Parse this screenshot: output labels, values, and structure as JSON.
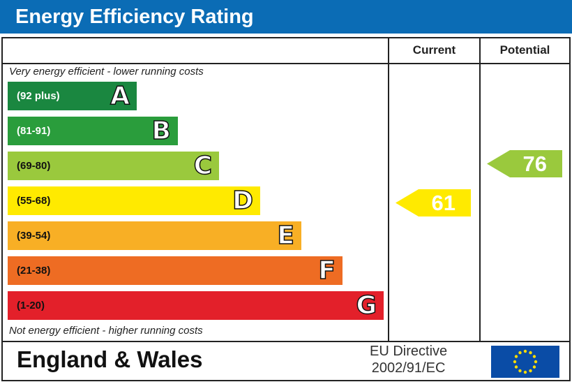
{
  "header": {
    "title": "Energy Efficiency Rating"
  },
  "columns": {
    "current": "Current",
    "potential": "Potential"
  },
  "notes": {
    "top": "Very energy efficient - lower running costs",
    "bottom": "Not energy efficient - higher running costs"
  },
  "footer": {
    "region": "England & Wales",
    "directive_line1": "EU Directive",
    "directive_line2": "2002/91/EC",
    "flag_icon": "eu-flag-icon"
  },
  "chart_data": {
    "type": "bar",
    "title": "Energy Efficiency Rating",
    "bands": [
      {
        "letter": "A",
        "range": "(92 plus)",
        "color": "#1a8740",
        "text": "#fff"
      },
      {
        "letter": "B",
        "range": "(81-91)",
        "color": "#2a9d3c",
        "text": "#fff"
      },
      {
        "letter": "C",
        "range": "(69-80)",
        "color": "#9ac93d",
        "text": "#111"
      },
      {
        "letter": "D",
        "range": "(55-68)",
        "color": "#ffea00",
        "text": "#111"
      },
      {
        "letter": "E",
        "range": "(39-54)",
        "color": "#f8af25",
        "text": "#111"
      },
      {
        "letter": "F",
        "range": "(21-38)",
        "color": "#ee6c23",
        "text": "#111"
      },
      {
        "letter": "G",
        "range": "(1-20)",
        "color": "#e3202a",
        "text": "#111"
      }
    ],
    "current": {
      "value": 61,
      "band": "D",
      "color": "#ffea00"
    },
    "potential": {
      "value": 76,
      "band": "C",
      "color": "#9ac93d"
    }
  }
}
